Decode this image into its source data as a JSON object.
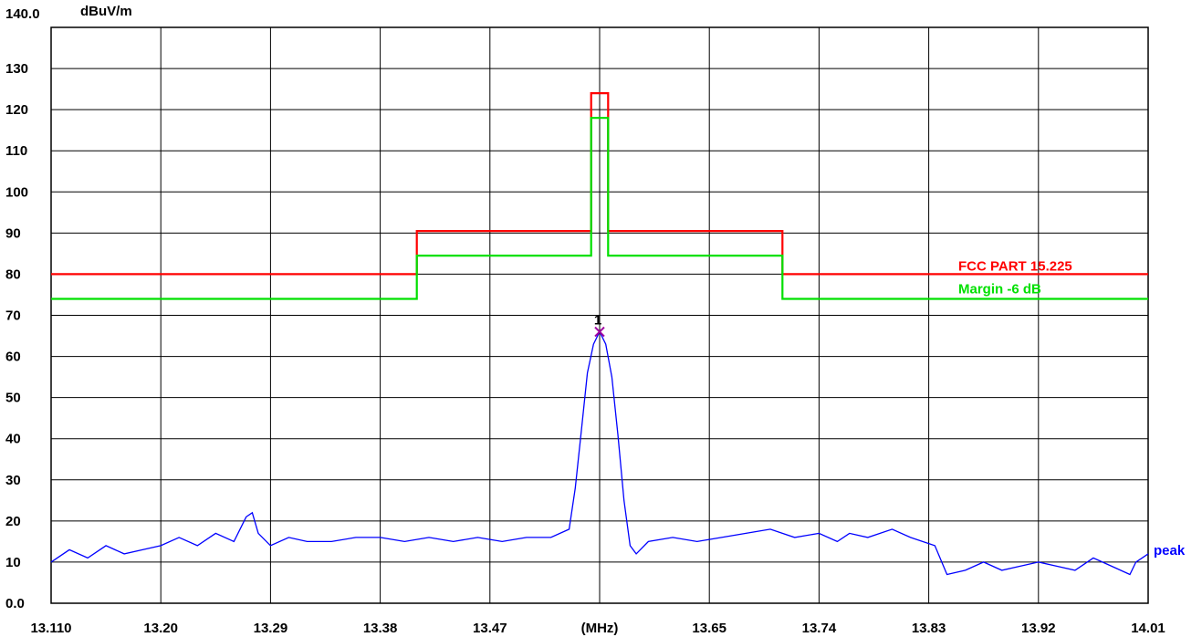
{
  "chart_data": {
    "type": "line",
    "y_top_label": "140.0",
    "y_unit": "dBuV/m",
    "x_unit_label": "(MHz)",
    "xlim": [
      13.11,
      14.01
    ],
    "ylim": [
      0,
      140
    ],
    "grid": true,
    "x_tick_labels": [
      "13.110",
      "13.20",
      "13.29",
      "13.38",
      "13.47",
      "(MHz)",
      "13.65",
      "13.74",
      "13.83",
      "13.92",
      "14.01"
    ],
    "x_tick_values": [
      13.11,
      13.2,
      13.29,
      13.38,
      13.47,
      13.56,
      13.65,
      13.74,
      13.83,
      13.92,
      14.01
    ],
    "y_tick_labels": [
      "0.0",
      "10",
      "20",
      "30",
      "40",
      "50",
      "60",
      "70",
      "80",
      "90",
      "100",
      "110",
      "120",
      "130"
    ],
    "y_tick_values": [
      0,
      10,
      20,
      30,
      40,
      50,
      60,
      70,
      80,
      90,
      100,
      110,
      120,
      130
    ],
    "series": [
      {
        "name": "FCC PART 15.225",
        "color": "#ff0000",
        "x": [
          13.11,
          13.41,
          13.41,
          13.553,
          13.553,
          13.567,
          13.567,
          13.71,
          13.71,
          14.01
        ],
        "y": [
          80,
          80,
          90.5,
          90.5,
          124,
          124,
          90.5,
          90.5,
          80,
          80
        ]
      },
      {
        "name": "Margin -6 dB",
        "color": "#00e000",
        "x": [
          13.11,
          13.41,
          13.41,
          13.553,
          13.553,
          13.567,
          13.567,
          13.71,
          13.71,
          14.01
        ],
        "y": [
          74,
          74,
          84.5,
          84.5,
          118,
          118,
          84.5,
          84.5,
          74,
          74
        ]
      },
      {
        "name": "peak",
        "color": "#0000ff",
        "x": [
          13.11,
          13.125,
          13.14,
          13.155,
          13.17,
          13.185,
          13.2,
          13.215,
          13.23,
          13.245,
          13.26,
          13.27,
          13.275,
          13.28,
          13.29,
          13.305,
          13.32,
          13.34,
          13.36,
          13.38,
          13.4,
          13.42,
          13.44,
          13.46,
          13.48,
          13.5,
          13.52,
          13.535,
          13.54,
          13.545,
          13.55,
          13.555,
          13.56,
          13.565,
          13.57,
          13.575,
          13.58,
          13.585,
          13.59,
          13.6,
          13.62,
          13.64,
          13.66,
          13.68,
          13.7,
          13.72,
          13.74,
          13.755,
          13.765,
          13.78,
          13.8,
          13.815,
          13.825,
          13.835,
          13.845,
          13.86,
          13.875,
          13.89,
          13.905,
          13.92,
          13.935,
          13.95,
          13.965,
          13.98,
          13.995,
          14.0,
          14.01
        ],
        "y": [
          10,
          13,
          11,
          14,
          12,
          13,
          14,
          16,
          14,
          17,
          15,
          21,
          22,
          17,
          14,
          16,
          15,
          15,
          16,
          16,
          15,
          16,
          15,
          16,
          15,
          16,
          16,
          18,
          28,
          42,
          56,
          63,
          66,
          63,
          55,
          41,
          25,
          14,
          12,
          15,
          16,
          15,
          16,
          17,
          18,
          16,
          17,
          15,
          17,
          16,
          18,
          16,
          15,
          14,
          7,
          8,
          10,
          8,
          9,
          10,
          9,
          8,
          11,
          9,
          7,
          10,
          12
        ]
      }
    ],
    "marker": {
      "label": "1",
      "x": 13.56,
      "y": 66
    }
  }
}
